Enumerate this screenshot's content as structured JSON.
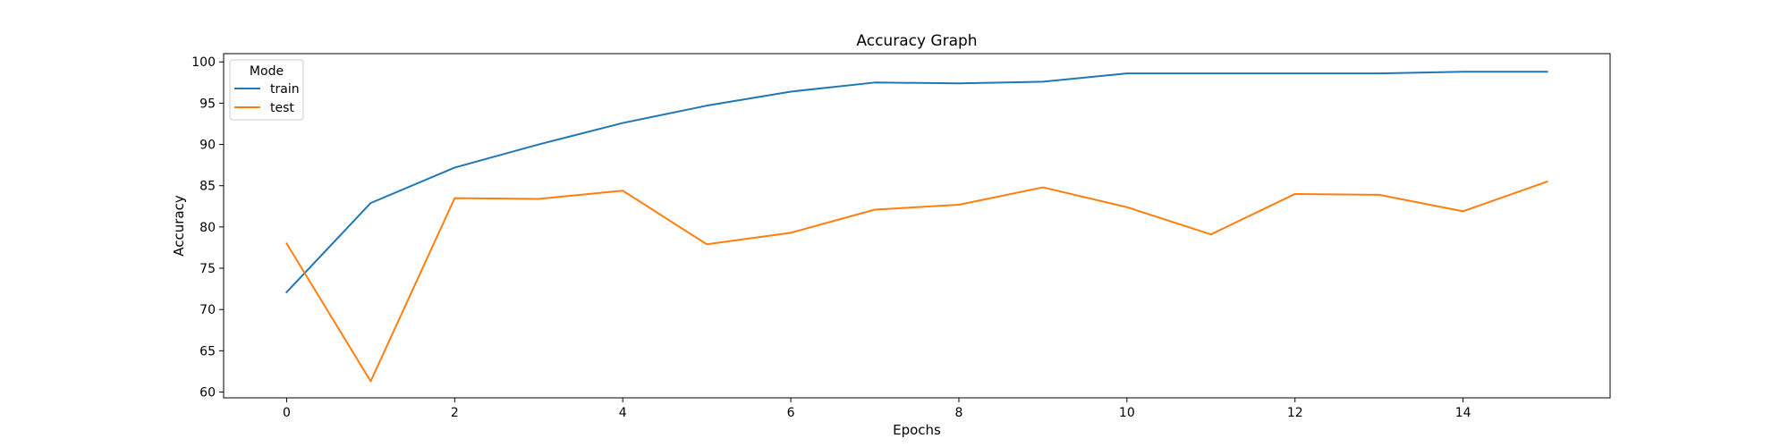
{
  "chart_data": {
    "type": "line",
    "title": "Accuracy Graph",
    "xlabel": "Epochs",
    "ylabel": "Accuracy",
    "x": [
      0,
      1,
      2,
      3,
      4,
      5,
      6,
      7,
      8,
      9,
      10,
      11,
      12,
      13,
      14,
      15
    ],
    "xlim": [
      -0.75,
      15.75
    ],
    "ylim": [
      59.3,
      101.0
    ],
    "xticks": [
      0,
      2,
      4,
      6,
      8,
      10,
      12,
      14
    ],
    "yticks": [
      60,
      65,
      70,
      75,
      80,
      85,
      90,
      95,
      100
    ],
    "grid": false,
    "legend": {
      "title": "Mode",
      "placement": "upper-left"
    },
    "series": [
      {
        "name": "train",
        "color": "#1f77b4",
        "values": [
          72.1,
          82.9,
          87.2,
          90.0,
          92.6,
          94.7,
          96.4,
          97.5,
          97.4,
          97.6,
          98.6,
          98.6,
          98.6,
          98.6,
          98.8,
          98.8
        ]
      },
      {
        "name": "test",
        "color": "#ff7f0e",
        "values": [
          78.0,
          61.3,
          83.5,
          83.4,
          84.4,
          77.9,
          79.3,
          82.1,
          82.7,
          84.8,
          82.4,
          79.1,
          84.0,
          83.9,
          81.9,
          85.5
        ]
      }
    ]
  }
}
